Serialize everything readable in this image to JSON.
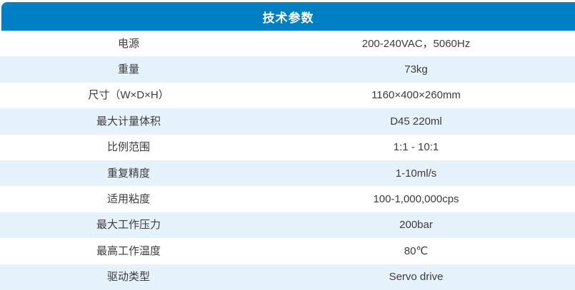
{
  "colors": {
    "header_bg": "#0080C4",
    "header_text": "#FFFFFF",
    "row_bg": "#FFFFFF",
    "row_alt_bg": "#E6F2FB",
    "text": "#3C3C3C"
  },
  "header": {
    "title": "技术参数"
  },
  "table": {
    "rows": [
      {
        "label": "电源",
        "value": "200-240VAC，5060Hz"
      },
      {
        "label": "重量",
        "value": "73kg"
      },
      {
        "label": "尺寸（W×D×H）",
        "value": "1160×400×260mm"
      },
      {
        "label": "最大计量体积",
        "value": "D45 220ml"
      },
      {
        "label": "比例范围",
        "value": "1:1 - 10:1"
      },
      {
        "label": "重复精度",
        "value": "1-10ml/s"
      },
      {
        "label": "适用粘度",
        "value": "100-1,000,000cps"
      },
      {
        "label": "最大工作压力",
        "value": "200bar"
      },
      {
        "label": "最高工作温度",
        "value": "80℃"
      },
      {
        "label": "驱动类型",
        "value": "Servo drive"
      }
    ]
  }
}
